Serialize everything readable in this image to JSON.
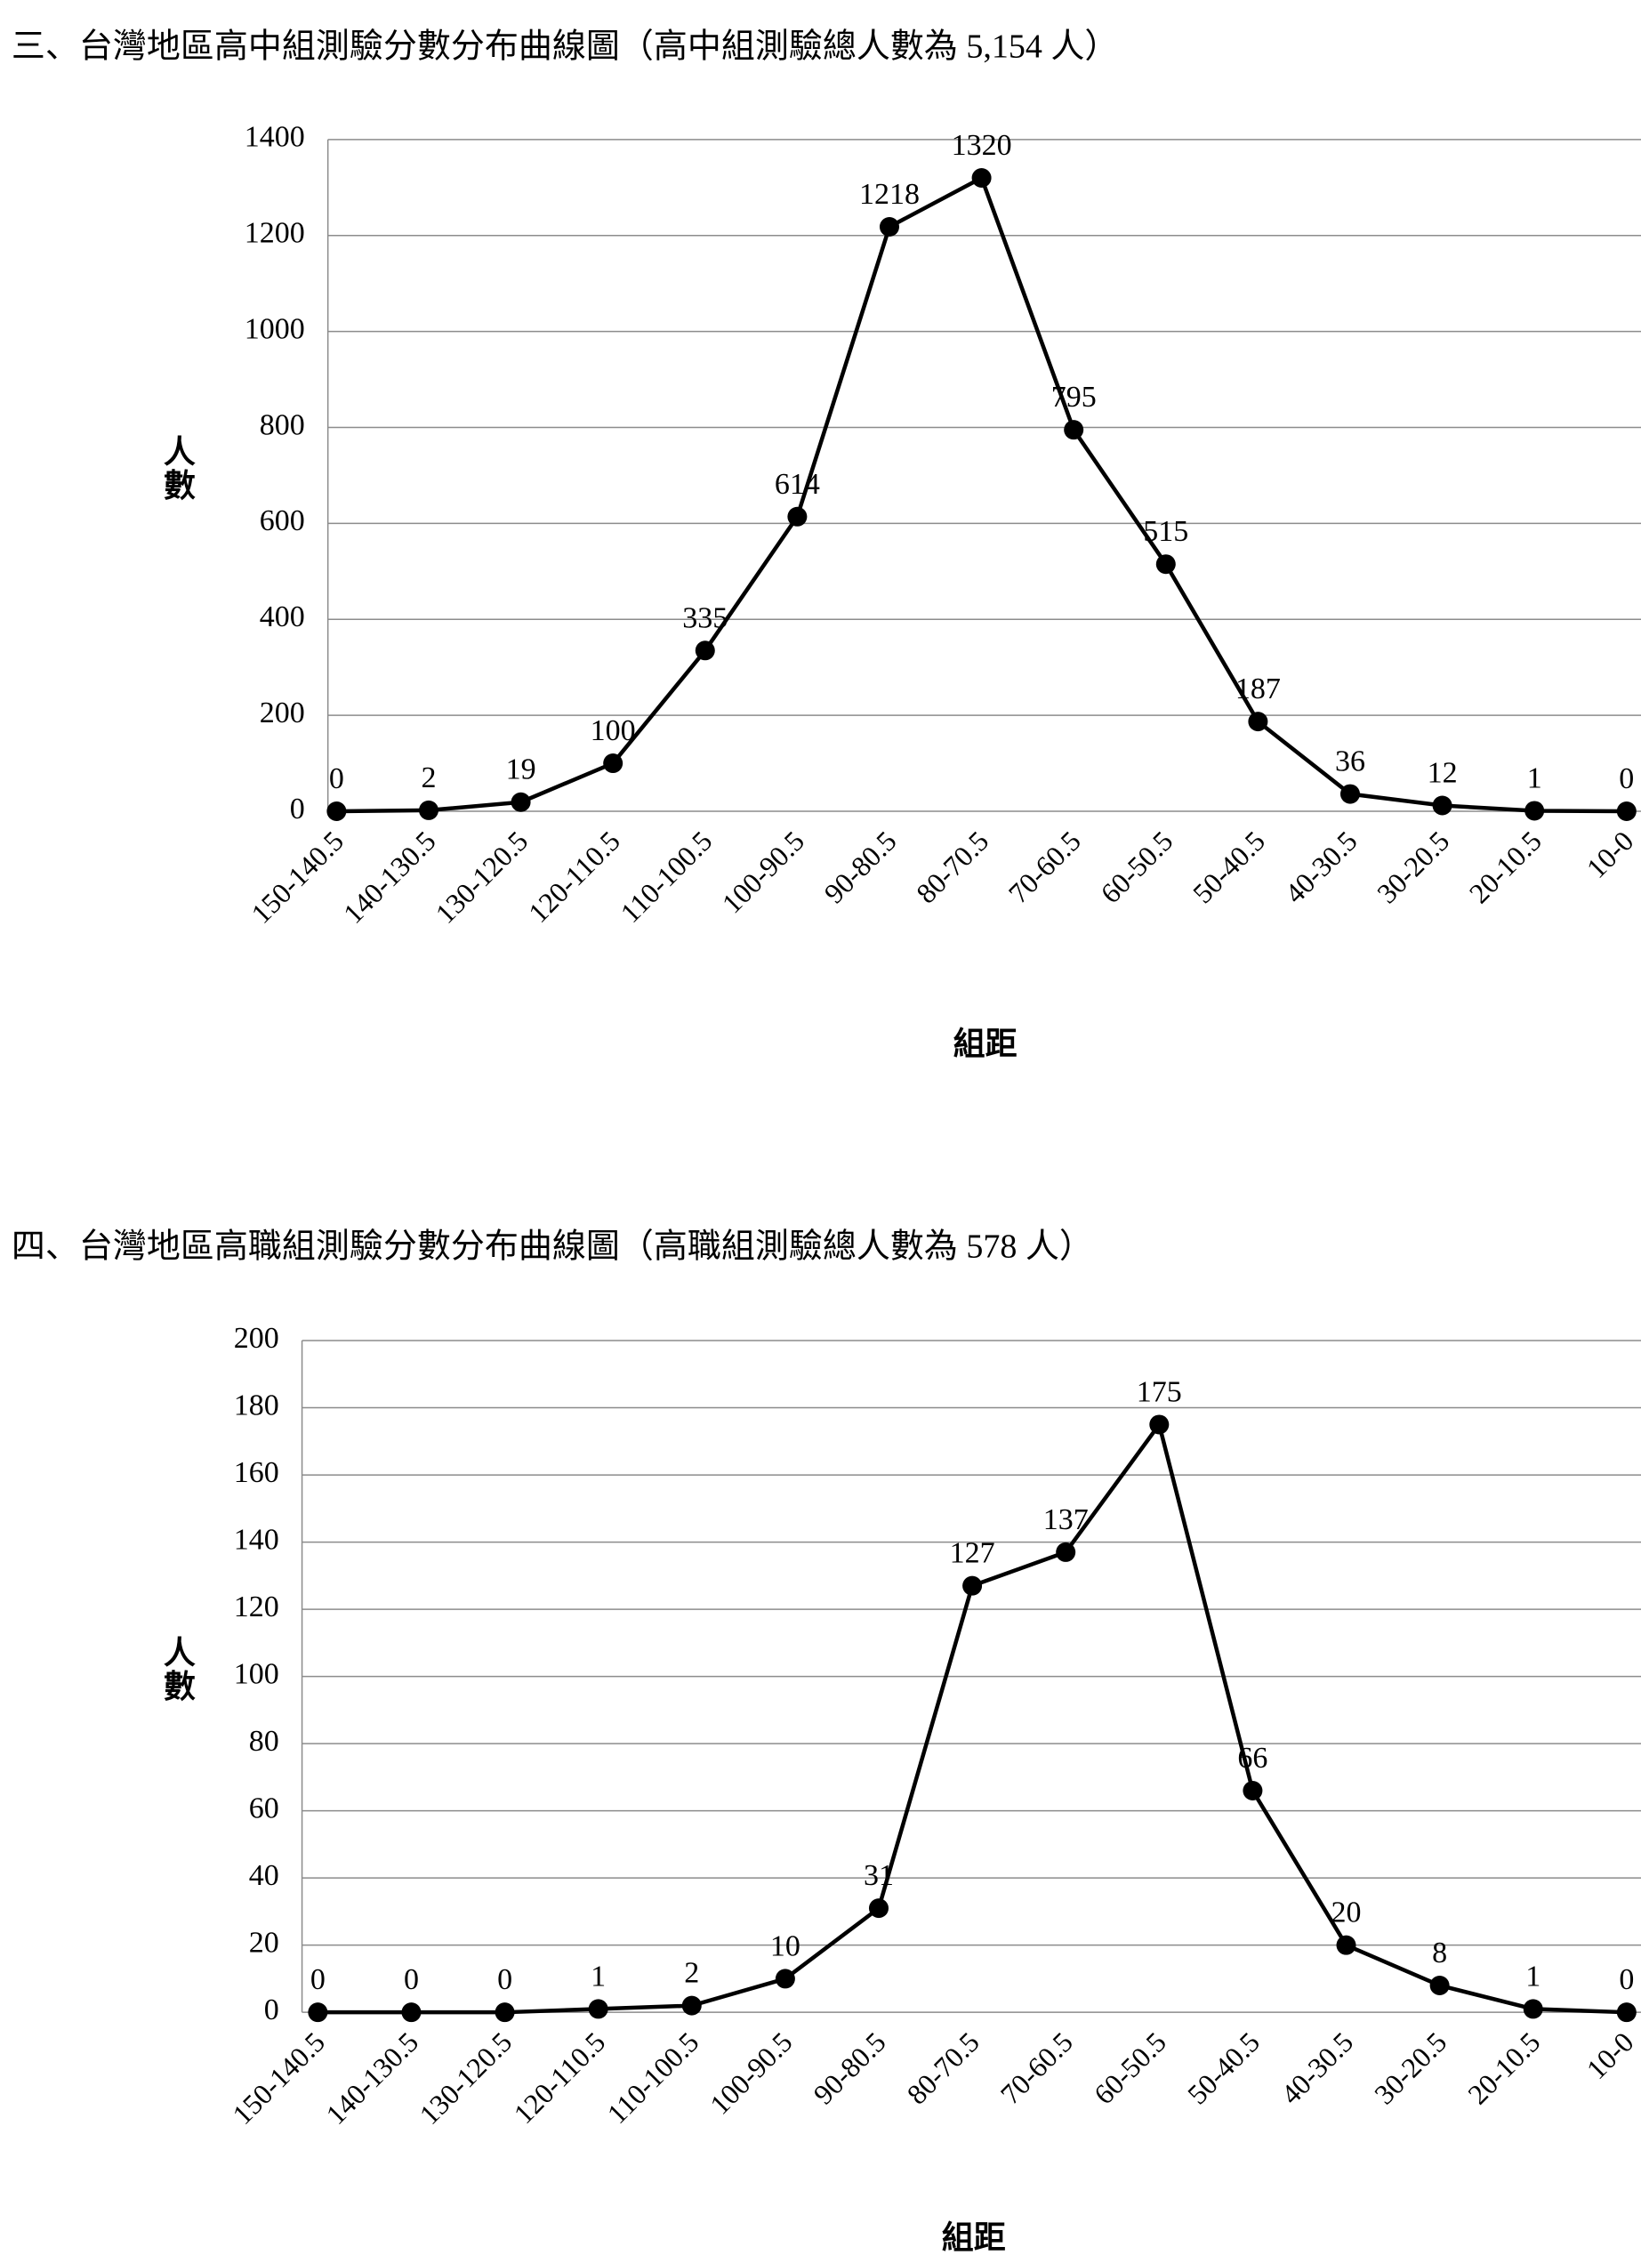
{
  "chart_data": [
    {
      "type": "line",
      "title": "三、台灣地區高中組測驗分數分布曲線圖（高中組測驗總人數為 5,154 人）",
      "x_label": "組距",
      "y_label": "人數",
      "categories": [
        "150-140.5",
        "140-130.5",
        "130-120.5",
        "120-110.5",
        "110-100.5",
        "100-90.5",
        "90-80.5",
        "80-70.5",
        "70-60.5",
        "60-50.5",
        "50-40.5",
        "40-30.5",
        "30-20.5",
        "20-10.5",
        "10-0"
      ],
      "values": [
        0,
        2,
        19,
        100,
        335,
        614,
        1218,
        1320,
        795,
        515,
        187,
        36,
        12,
        1,
        0
      ],
      "color": "#000000",
      "ylim": [
        0,
        1400
      ],
      "yticks": [
        0,
        200,
        400,
        600,
        800,
        1000,
        1200,
        1400
      ],
      "grid": true
    },
    {
      "type": "line",
      "title": "四、台灣地區高職組測驗分數分布曲線圖（高職組測驗總人數為 578 人）",
      "x_label": "組距",
      "y_label": "人數",
      "categories": [
        "150-140.5",
        "140-130.5",
        "130-120.5",
        "120-110.5",
        "110-100.5",
        "100-90.5",
        "90-80.5",
        "80-70.5",
        "70-60.5",
        "60-50.5",
        "50-40.5",
        "40-30.5",
        "30-20.5",
        "20-10.5",
        "10-0"
      ],
      "values": [
        0,
        0,
        0,
        1,
        2,
        10,
        31,
        127,
        137,
        175,
        66,
        20,
        8,
        1,
        0
      ],
      "color": "#000000",
      "ylim": [
        0,
        200
      ],
      "yticks": [
        0,
        20,
        40,
        60,
        80,
        100,
        120,
        140,
        160,
        180,
        200
      ],
      "grid": true
    }
  ]
}
